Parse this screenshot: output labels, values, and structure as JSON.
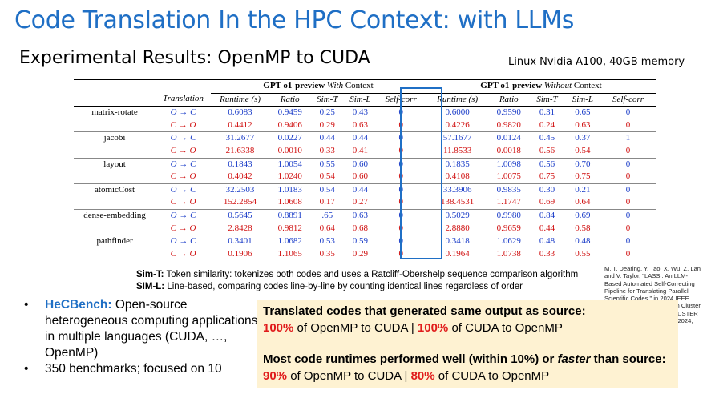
{
  "slide": {
    "title": "Code Translation In the HPC Context: with LLMs",
    "subtitle": "Experimental Results: OpenMP to CUDA",
    "hardware": "Linux Nvidia A100, 40GB memory"
  },
  "table": {
    "group_with": {
      "model": "GPT o1-preview",
      "suffix": "With",
      "tail": "Context"
    },
    "group_without": {
      "model": "GPT o1-preview",
      "suffix": "Without",
      "tail": "Context"
    },
    "col_translation": "Translation",
    "cols_with": [
      "Runtime (s)",
      "Ratio",
      "Sim-T",
      "Sim-L",
      "Self-corr"
    ],
    "cols_without": [
      "Runtime (s)",
      "Ratio",
      "Sim-T",
      "Sim-L",
      "Self-corr"
    ],
    "benchmarks": [
      {
        "name": "matrix-rotate",
        "rows": [
          {
            "dir": "O → C",
            "with": [
              "0.6083",
              "0.9459",
              "0.25",
              "0.43",
              "0"
            ],
            "without": [
              "0.6000",
              "0.9590",
              "0.31",
              "0.65",
              "0"
            ]
          },
          {
            "dir": "C → O",
            "with": [
              "0.4412",
              "0.9406",
              "0.29",
              "0.63",
              "0"
            ],
            "without": [
              "0.4226",
              "0.9820",
              "0.24",
              "0.63",
              "0"
            ]
          }
        ]
      },
      {
        "name": "jacobi",
        "rows": [
          {
            "dir": "O → C",
            "with": [
              "31.2677",
              "0.0227",
              "0.44",
              "0.44",
              "0"
            ],
            "without": [
              "57.1677",
              "0.0124",
              "0.45",
              "0.37",
              "1"
            ]
          },
          {
            "dir": "C → O",
            "with": [
              "21.6338",
              "0.0010",
              "0.33",
              "0.41",
              "0"
            ],
            "without": [
              "11.8533",
              "0.0018",
              "0.56",
              "0.54",
              "0"
            ]
          }
        ]
      },
      {
        "name": "layout",
        "rows": [
          {
            "dir": "O → C",
            "with": [
              "0.1843",
              "1.0054",
              "0.55",
              "0.60",
              "0"
            ],
            "without": [
              "0.1835",
              "1.0098",
              "0.56",
              "0.70",
              "0"
            ]
          },
          {
            "dir": "C → O",
            "with": [
              "0.4042",
              "1.0240",
              "0.54",
              "0.60",
              "0"
            ],
            "without": [
              "0.4108",
              "1.0075",
              "0.75",
              "0.75",
              "0"
            ]
          }
        ]
      },
      {
        "name": "atomicCost",
        "rows": [
          {
            "dir": "O → C",
            "with": [
              "32.2503",
              "1.0183",
              "0.54",
              "0.44",
              "0"
            ],
            "without": [
              "33.3906",
              "0.9835",
              "0.30",
              "0.21",
              "0"
            ]
          },
          {
            "dir": "C → O",
            "with": [
              "152.2854",
              "1.0608",
              "0.17",
              "0.27",
              "0"
            ],
            "without": [
              "138.4531",
              "1.1747",
              "0.69",
              "0.64",
              "0"
            ]
          }
        ]
      },
      {
        "name": "dense-embedding",
        "rows": [
          {
            "dir": "O → C",
            "with": [
              "0.5645",
              "0.8891",
              ".65",
              "0.63",
              "0"
            ],
            "without": [
              "0.5029",
              "0.9980",
              "0.84",
              "0.69",
              "0"
            ]
          },
          {
            "dir": "C → O",
            "with": [
              "2.8428",
              "0.9812",
              "0.64",
              "0.68",
              "0"
            ],
            "without": [
              "2.8880",
              "0.9659",
              "0.44",
              "0.58",
              "0"
            ]
          }
        ]
      },
      {
        "name": "pathfinder",
        "rows": [
          {
            "dir": "O → C",
            "with": [
              "0.3401",
              "1.0682",
              "0.53",
              "0.59",
              "0"
            ],
            "without": [
              "0.3418",
              "1.0629",
              "0.48",
              "0.48",
              "0"
            ]
          },
          {
            "dir": "C → O",
            "with": [
              "0.1906",
              "1.1065",
              "0.35",
              "0.29",
              "0"
            ],
            "without": [
              "0.1964",
              "1.0738",
              "0.33",
              "0.55",
              "0"
            ]
          }
        ]
      }
    ]
  },
  "definitions": {
    "simt_label": "Sim-T:",
    "simt_text": " Token similarity: tokenizes both codes and uses a Ratcliff-Obershelp sequence comparison algorithm",
    "siml_label": "SIM-L:",
    "siml_text": " Line-based, comparing codes line-by-line by counting identical lines regardless of order"
  },
  "citation": "M. T. Dearing, Y. Tao, X. Wu, Z. Lan and V. Taylor, \"LASSI: An LLM-Based Automated Self-Correcting Pipeline for Translating Parallel Scientific Codes,\" in 2024 IEEE International Conference on Cluster Computing Workshops (CLUSTER Workshops), Kobe, Japan, 2024,",
  "bullets": {
    "b1_accent": "HeCBench:",
    "b1_text": " Open-source heterogeneous computing applications in multiple languages (CUDA, …, OpenMP)",
    "b2_text": "350 benchmarks; focused on 10",
    "dot": "•"
  },
  "highlight": {
    "line1": "Translated codes that generated same output as source:",
    "l2_p1": "100%",
    "l2_t1": " of OpenMP to CUDA | ",
    "l2_p2": "100%",
    "l2_t2": " of CUDA to OpenMP",
    "line3_a": "Most code runtimes performed well (within 10%) or ",
    "line3_b": "faster",
    "line3_c": " than source:",
    "l4_p1": "90%",
    "l4_t1": " of OpenMP to CUDA | ",
    "l4_p2": "80%",
    "l4_t2": " of CUDA to OpenMP"
  }
}
